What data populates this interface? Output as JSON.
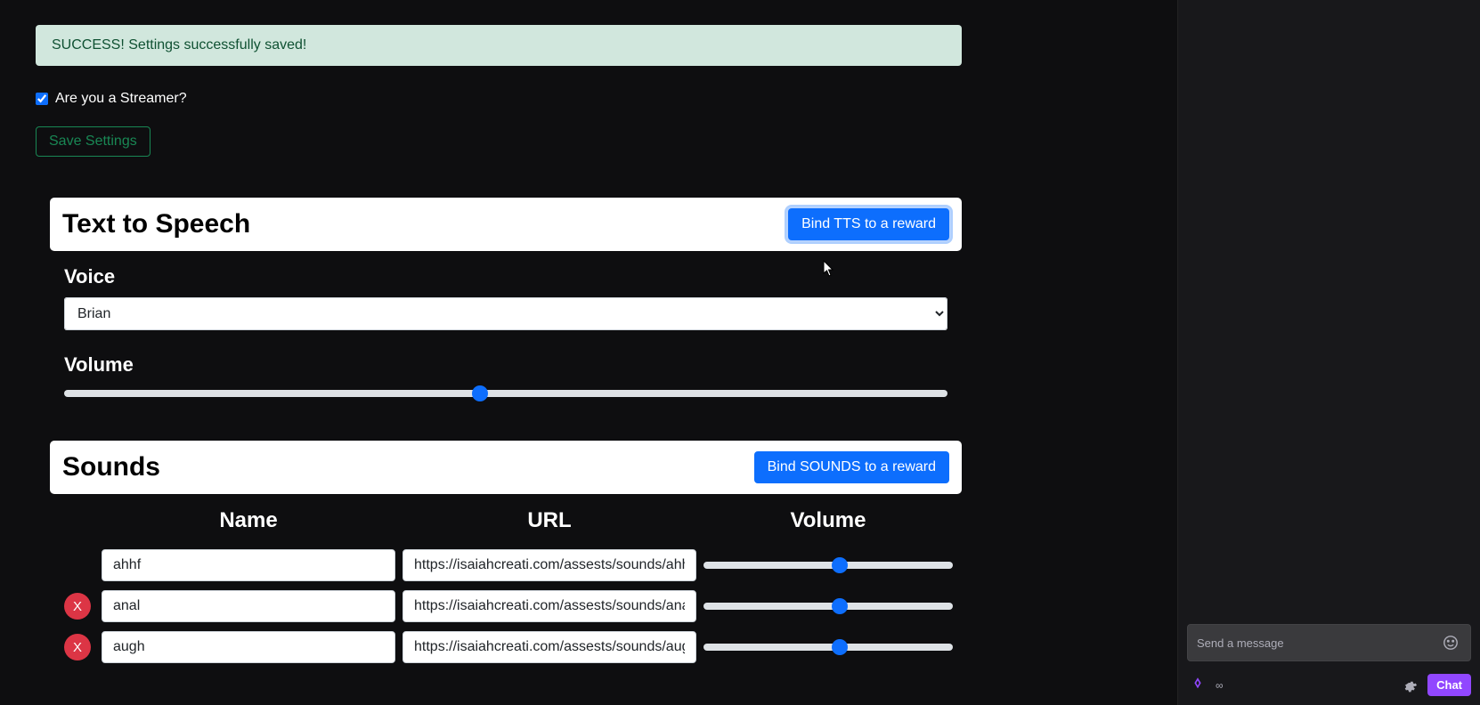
{
  "alert": {
    "text": "SUCCESS! Settings successfully saved!"
  },
  "streamer": {
    "label": "Are you a Streamer?",
    "checked": true
  },
  "save_btn": "Save Settings",
  "tts": {
    "title": "Text to Speech",
    "bind_btn": "Bind TTS to a reward",
    "voice_label": "Voice",
    "voice_value": "Brian",
    "volume_label": "Volume",
    "volume_value": 47
  },
  "sounds": {
    "title": "Sounds",
    "bind_btn": "Bind SOUNDS to a reward",
    "col_name": "Name",
    "col_url": "URL",
    "col_volume": "Volume",
    "rows": [
      {
        "name": "ahhf",
        "url": "https://isaiahcreati.com/assests/sounds/ahhf.",
        "vol": 55,
        "show_x": false
      },
      {
        "name": "anal",
        "url": "https://isaiahcreati.com/assests/sounds/anal.",
        "vol": 55,
        "show_x": true
      },
      {
        "name": "augh",
        "url": "https://isaiahcreati.com/assests/sounds/augh",
        "vol": 55,
        "show_x": true
      }
    ]
  },
  "chat": {
    "placeholder": "Send a message",
    "send": "Chat",
    "infinity": "∞"
  },
  "colors": {
    "success_bg": "#d1e7dd",
    "primary": "#0d6efd",
    "danger": "#dc3545",
    "twitch_purple": "#9147ff"
  }
}
